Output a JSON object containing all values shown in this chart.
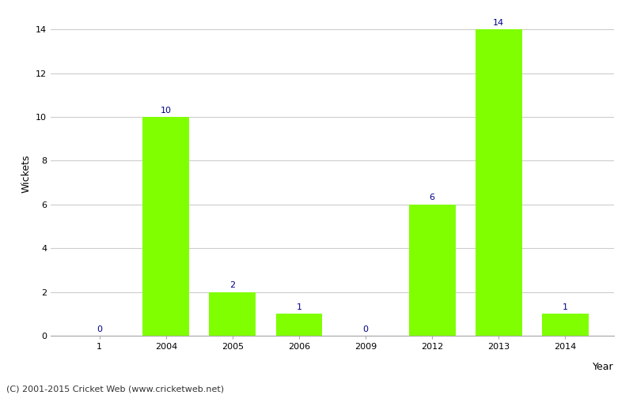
{
  "categories": [
    "1",
    "2004",
    "2005",
    "2006",
    "2009",
    "2012",
    "2013",
    "2014"
  ],
  "values": [
    0,
    10,
    2,
    1,
    0,
    6,
    14,
    1
  ],
  "bar_color": "#7fff00",
  "label_color": "#00008b",
  "ylabel": "Wickets",
  "xlabel": "Year",
  "ylim": [
    0,
    14.8
  ],
  "yticks": [
    0,
    2,
    4,
    6,
    8,
    10,
    12,
    14
  ],
  "title": "",
  "footer": "(C) 2001-2015 Cricket Web (www.cricketweb.net)",
  "label_fontsize": 8,
  "axis_label_fontsize": 9,
  "tick_fontsize": 8,
  "footer_fontsize": 8,
  "bar_width": 0.7,
  "grid_color": "#cccccc",
  "spine_color": "#aaaaaa"
}
